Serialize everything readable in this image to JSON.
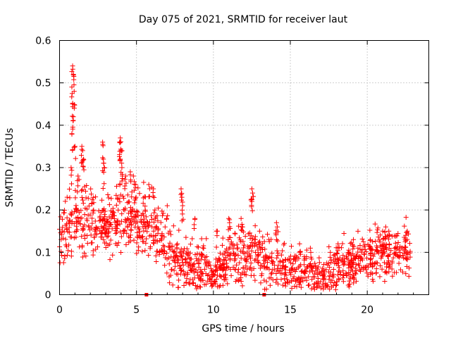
{
  "chart_data": {
    "type": "scatter",
    "title": "Day 075 of 2021, SRMTID for receiver laut",
    "xlabel": "GPS time / hours",
    "ylabel": "SRMTID / TECUs",
    "xlim": [
      0,
      24
    ],
    "ylim": [
      0,
      0.6
    ],
    "xticks": [
      0,
      5,
      10,
      15,
      20
    ],
    "yticks": [
      0,
      0.1,
      0.2,
      0.3,
      0.4,
      0.5,
      0.6
    ],
    "xtick_labels": [
      "0",
      "5",
      "10",
      "15",
      "20"
    ],
    "ytick_labels": [
      "0",
      "0.1",
      "0.2",
      "0.3",
      "0.4",
      "0.5",
      "0.6"
    ],
    "grid": true,
    "marker": "+",
    "color": "#ff0000",
    "series": [
      {
        "name": "SRMTID",
        "trend": {
          "x": [
            0.0,
            0.5,
            1.0,
            1.5,
            2.0,
            2.5,
            3.0,
            3.5,
            4.0,
            4.5,
            5.0,
            5.5,
            6.0,
            6.5,
            7.0,
            7.5,
            8.0,
            8.5,
            9.0,
            9.5,
            10.0,
            10.5,
            11.0,
            11.5,
            12.0,
            12.5,
            13.0,
            13.5,
            14.0,
            14.5,
            15.0,
            15.5,
            16.0,
            16.5,
            17.0,
            17.5,
            18.0,
            18.5,
            19.0,
            19.5,
            20.0,
            20.5,
            21.0,
            21.5,
            22.0,
            22.5,
            22.8
          ],
          "y": [
            0.15,
            0.16,
            0.19,
            0.19,
            0.18,
            0.16,
            0.17,
            0.17,
            0.19,
            0.18,
            0.18,
            0.17,
            0.16,
            0.14,
            0.1,
            0.09,
            0.08,
            0.07,
            0.07,
            0.06,
            0.05,
            0.06,
            0.08,
            0.09,
            0.09,
            0.1,
            0.09,
            0.08,
            0.08,
            0.07,
            0.06,
            0.05,
            0.05,
            0.05,
            0.03,
            0.04,
            0.06,
            0.07,
            0.07,
            0.08,
            0.09,
            0.09,
            0.1,
            0.1,
            0.1,
            0.11,
            0.1
          ]
        },
        "spikes": [
          {
            "x": 0.85,
            "y": 0.54
          },
          {
            "x": 0.9,
            "y": 0.52
          },
          {
            "x": 0.8,
            "y": 0.49
          },
          {
            "x": 0.95,
            "y": 0.48
          },
          {
            "x": 0.85,
            "y": 0.45
          },
          {
            "x": 0.9,
            "y": 0.42
          },
          {
            "x": 0.8,
            "y": 0.38
          },
          {
            "x": 1.0,
            "y": 0.35
          },
          {
            "x": 0.75,
            "y": 0.3
          },
          {
            "x": 1.45,
            "y": 0.35
          },
          {
            "x": 1.5,
            "y": 0.34
          },
          {
            "x": 1.55,
            "y": 0.32
          },
          {
            "x": 1.2,
            "y": 0.28
          },
          {
            "x": 2.8,
            "y": 0.36
          },
          {
            "x": 2.85,
            "y": 0.32
          },
          {
            "x": 2.9,
            "y": 0.3
          },
          {
            "x": 3.95,
            "y": 0.37
          },
          {
            "x": 3.9,
            "y": 0.36
          },
          {
            "x": 4.0,
            "y": 0.34
          },
          {
            "x": 3.95,
            "y": 0.32
          },
          {
            "x": 4.05,
            "y": 0.3
          },
          {
            "x": 4.3,
            "y": 0.28
          },
          {
            "x": 4.6,
            "y": 0.29
          },
          {
            "x": 4.8,
            "y": 0.28
          },
          {
            "x": 4.95,
            "y": 0.26
          },
          {
            "x": 5.8,
            "y": 0.26
          },
          {
            "x": 6.1,
            "y": 0.25
          },
          {
            "x": 7.0,
            "y": 0.21
          },
          {
            "x": 7.9,
            "y": 0.25
          },
          {
            "x": 7.95,
            "y": 0.23
          },
          {
            "x": 8.0,
            "y": 0.21
          },
          {
            "x": 8.8,
            "y": 0.18
          },
          {
            "x": 10.2,
            "y": 0.15
          },
          {
            "x": 11.0,
            "y": 0.18
          },
          {
            "x": 11.05,
            "y": 0.17
          },
          {
            "x": 11.8,
            "y": 0.18
          },
          {
            "x": 11.9,
            "y": 0.16
          },
          {
            "x": 12.5,
            "y": 0.25
          },
          {
            "x": 12.55,
            "y": 0.24
          },
          {
            "x": 12.5,
            "y": 0.22
          },
          {
            "x": 13.0,
            "y": 0.15
          },
          {
            "x": 14.1,
            "y": 0.17
          },
          {
            "x": 14.15,
            "y": 0.16
          },
          {
            "x": 15.6,
            "y": 0.12
          },
          {
            "x": 16.3,
            "y": 0.11
          },
          {
            "x": 17.6,
            "y": 0.1
          },
          {
            "x": 18.1,
            "y": 0.12
          },
          {
            "x": 19.1,
            "y": 0.13
          },
          {
            "x": 20.2,
            "y": 0.13
          },
          {
            "x": 21.0,
            "y": 0.15
          },
          {
            "x": 21.2,
            "y": 0.16
          },
          {
            "x": 21.4,
            "y": 0.15
          },
          {
            "x": 22.5,
            "y": 0.14
          },
          {
            "x": 22.6,
            "y": 0.15
          }
        ],
        "spread": 0.035,
        "count": 1400
      }
    ],
    "axis_markers": [
      {
        "x": 5.65,
        "y": 0
      },
      {
        "x": 13.3,
        "y": 0
      }
    ]
  }
}
